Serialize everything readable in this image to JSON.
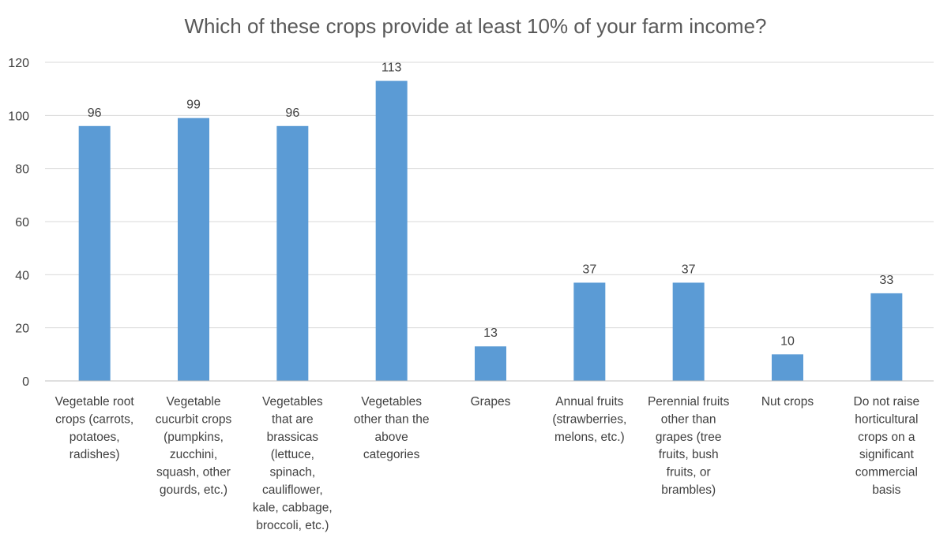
{
  "chart_data": {
    "type": "bar",
    "title": "Which of these crops provide at least 10% of your farm income?",
    "xlabel": "",
    "ylabel": "",
    "ylim": [
      0,
      120
    ],
    "yticks": [
      0,
      20,
      40,
      60,
      80,
      100,
      120
    ],
    "grid": true,
    "bar_color": "#5b9bd5",
    "categories": [
      [
        "Vegetable root",
        "crops (carrots,",
        "potatoes,",
        "radishes)"
      ],
      [
        "Vegetable",
        "cucurbit crops",
        "(pumpkins,",
        "zucchini,",
        "squash, other",
        "gourds, etc.)"
      ],
      [
        "Vegetables",
        "that are",
        "brassicas",
        "(lettuce,",
        "spinach,",
        "cauliflower,",
        "kale, cabbage,",
        "broccoli, etc.)"
      ],
      [
        "Vegetables",
        "other than the",
        "above",
        "categories"
      ],
      [
        "Grapes"
      ],
      [
        "Annual fruits",
        "(strawberries,",
        "melons, etc.)"
      ],
      [
        "Perennial fruits",
        "other than",
        "grapes (tree",
        "fruits, bush",
        "fruits, or",
        "brambles)"
      ],
      [
        "Nut crops"
      ],
      [
        "Do not raise",
        "horticultural",
        "crops on a",
        "significant",
        "commercial",
        "basis"
      ]
    ],
    "values": [
      96,
      99,
      96,
      113,
      13,
      37,
      37,
      10,
      33
    ]
  }
}
